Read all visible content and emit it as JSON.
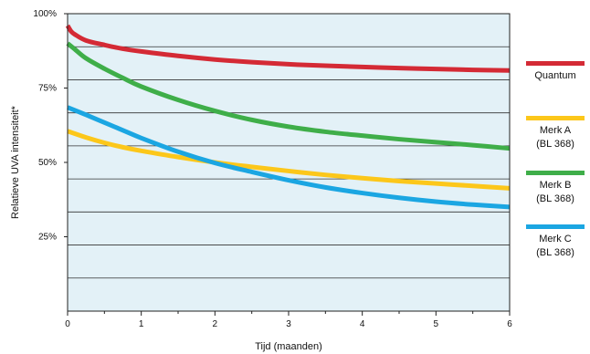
{
  "chart_data": {
    "type": "line",
    "title": "",
    "xlabel": "Tijd (maanden)",
    "ylabel": "Relatieve UVA intensiteit*",
    "xlim": [
      0,
      6
    ],
    "ylim": [
      0,
      100
    ],
    "x_ticks": [
      "0",
      "1",
      "2",
      "3",
      "4",
      "5",
      "6"
    ],
    "y_ticks": [
      {
        "value": 100,
        "label": "100%"
      },
      {
        "value": 75,
        "label": "75%"
      },
      {
        "value": 50,
        "label": "50%"
      },
      {
        "value": 25,
        "label": "25%"
      }
    ],
    "grid": true,
    "background_color": "#e3f1f7",
    "legend_position": "right",
    "series": [
      {
        "name": "Quantum",
        "label_lines": [
          "Quantum"
        ],
        "color": "#d42a35",
        "x": [
          0,
          0.05,
          0.1,
          0.25,
          0.5,
          0.75,
          1,
          1.5,
          2,
          2.5,
          3,
          3.5,
          4,
          4.5,
          5,
          5.5,
          6
        ],
        "y": [
          96,
          94,
          93,
          91,
          89.5,
          88.2,
          87.3,
          85.8,
          84.6,
          83.7,
          83,
          82.5,
          82.1,
          81.7,
          81.4,
          81.1,
          80.9
        ]
      },
      {
        "name": "Merk A (BL 368)",
        "label_lines": [
          "Merk A",
          "(BL 368)"
        ],
        "color": "#fcc71a",
        "x": [
          0,
          0.25,
          0.5,
          0.75,
          1,
          1.5,
          2,
          2.5,
          3,
          3.5,
          4,
          4.5,
          5,
          5.5,
          6
        ],
        "y": [
          60.5,
          58.4,
          56.6,
          55.1,
          53.9,
          51.8,
          50,
          48.5,
          47.1,
          45.8,
          44.7,
          43.7,
          42.9,
          42.1,
          41.3
        ]
      },
      {
        "name": "Merk B (BL 368)",
        "label_lines": [
          "Merk B",
          "(BL 368)"
        ],
        "color": "#3fae49",
        "x": [
          0,
          0.1,
          0.25,
          0.5,
          0.75,
          1,
          1.5,
          2,
          2.5,
          3,
          3.5,
          4,
          4.5,
          5,
          5.5,
          6
        ],
        "y": [
          90,
          88,
          85,
          81.5,
          78.4,
          75.5,
          71,
          67.3,
          64.3,
          62,
          60.3,
          59,
          57.8,
          56.8,
          55.8,
          54.7
        ]
      },
      {
        "name": "Merk C (BL 368)",
        "label_lines": [
          "Merk C",
          "(BL 368)"
        ],
        "color": "#1ba6e2",
        "x": [
          0,
          0.25,
          0.5,
          0.75,
          1,
          1.5,
          2,
          2.5,
          3,
          3.5,
          4,
          4.5,
          5,
          5.5,
          6
        ],
        "y": [
          68.5,
          66,
          63.4,
          60.8,
          58.2,
          53.6,
          49.8,
          46.8,
          44,
          41.6,
          39.7,
          38.1,
          36.8,
          35.8,
          35
        ]
      }
    ]
  }
}
